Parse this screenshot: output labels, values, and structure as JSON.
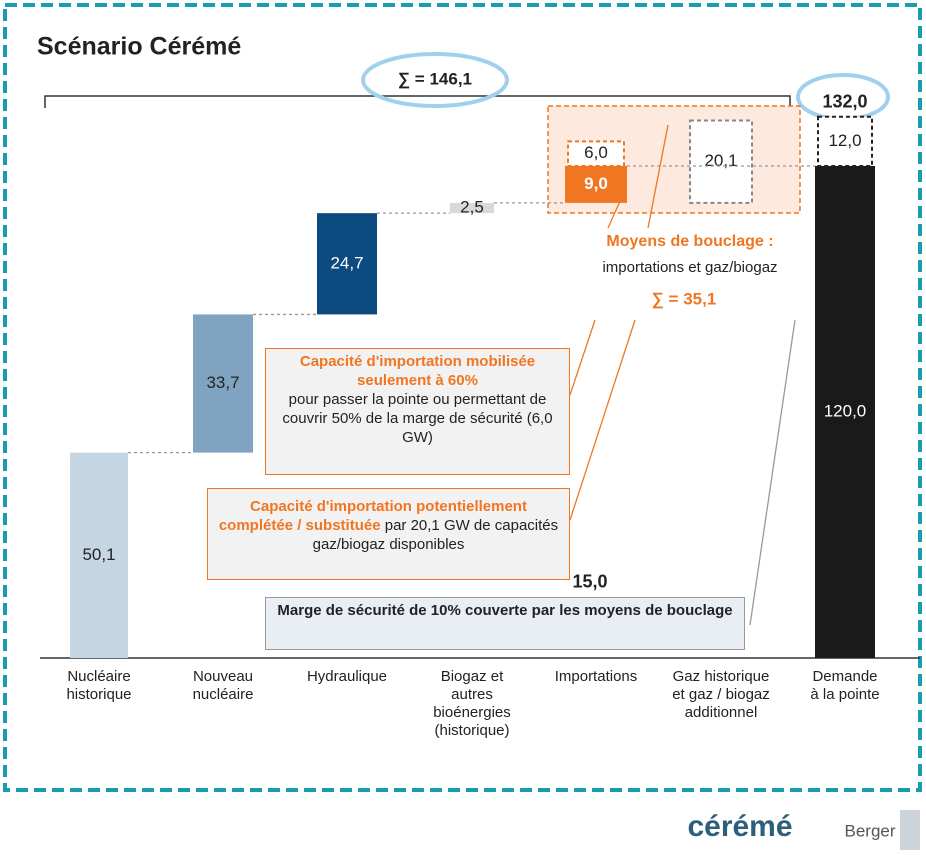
{
  "chart_data": {
    "type": "waterfall",
    "title": "Scénario Cérémé",
    "categories": [
      "Nucléaire\nhistorique",
      "Nouveau\nnucléaire",
      "Hydraulique",
      "Biogaz et\nautres\nbioénergies\n(historique)",
      "Importations",
      "Gaz historique\net gaz / biogaz\nadditionnel",
      "Demande\nà la pointe"
    ],
    "kinds": [
      "step",
      "step",
      "step",
      "step",
      "step",
      "alternative",
      "total"
    ],
    "series": [
      {
        "values": [
          50.1,
          33.7,
          24.7,
          2.5,
          9.0,
          20.1,
          120.0
        ],
        "value_labels": [
          "50,1",
          "33,7",
          "24,7",
          "2,5",
          "9,0",
          "20,1",
          "120,0"
        ],
        "colors": [
          "#c5d6e4",
          "#7fa3c0",
          "#0d4a80",
          "#d9d9d9",
          "#f07622",
          "#ffffff",
          "#1a1a1a"
        ],
        "label_colors": [
          "#222222",
          "#222222",
          "#ffffff",
          "#222222",
          "#ffffff",
          "#222222",
          "#ffffff"
        ]
      },
      {
        "style": "dashed",
        "values": [
          null,
          null,
          null,
          null,
          6.0,
          null,
          12.0
        ],
        "value_labels": [
          null,
          null,
          null,
          null,
          "6,0",
          null,
          "12,0"
        ],
        "colors": [
          null,
          null,
          null,
          null,
          "#f07622",
          null,
          "#222222"
        ]
      }
    ],
    "totals": [
      null,
      null,
      null,
      null,
      {
        "value": 15.0,
        "label": "15,0"
      },
      null,
      {
        "value": 132.0,
        "label": "132,0"
      }
    ],
    "ylim": [
      0,
      160
    ],
    "sum_all": {
      "value": 146.1,
      "label": "∑ = 146,1"
    },
    "sum_bouclage": {
      "value": 35.1,
      "label": "∑ = 35,1"
    },
    "bouclage_title": "Moyens de bouclage :",
    "bouclage_text": "importations et gaz/biogaz",
    "notes": [
      {
        "highlight": "Capacité d'importation mobilisée seulement à 60%",
        "text": "pour passer la pointe ou permettant de couvrir 50% de la marge de sécurité (6,0 GW)"
      },
      {
        "highlight": "Capacité d'importation potentiellement complétée / substituée",
        "text": " par 20,1 GW de capacités gaz/biogaz disponibles"
      },
      {
        "text": "Marge de sécurité de 10% couverte par les moyens de bouclage"
      }
    ],
    "logos": [
      "cérémé",
      "Berger"
    ]
  }
}
